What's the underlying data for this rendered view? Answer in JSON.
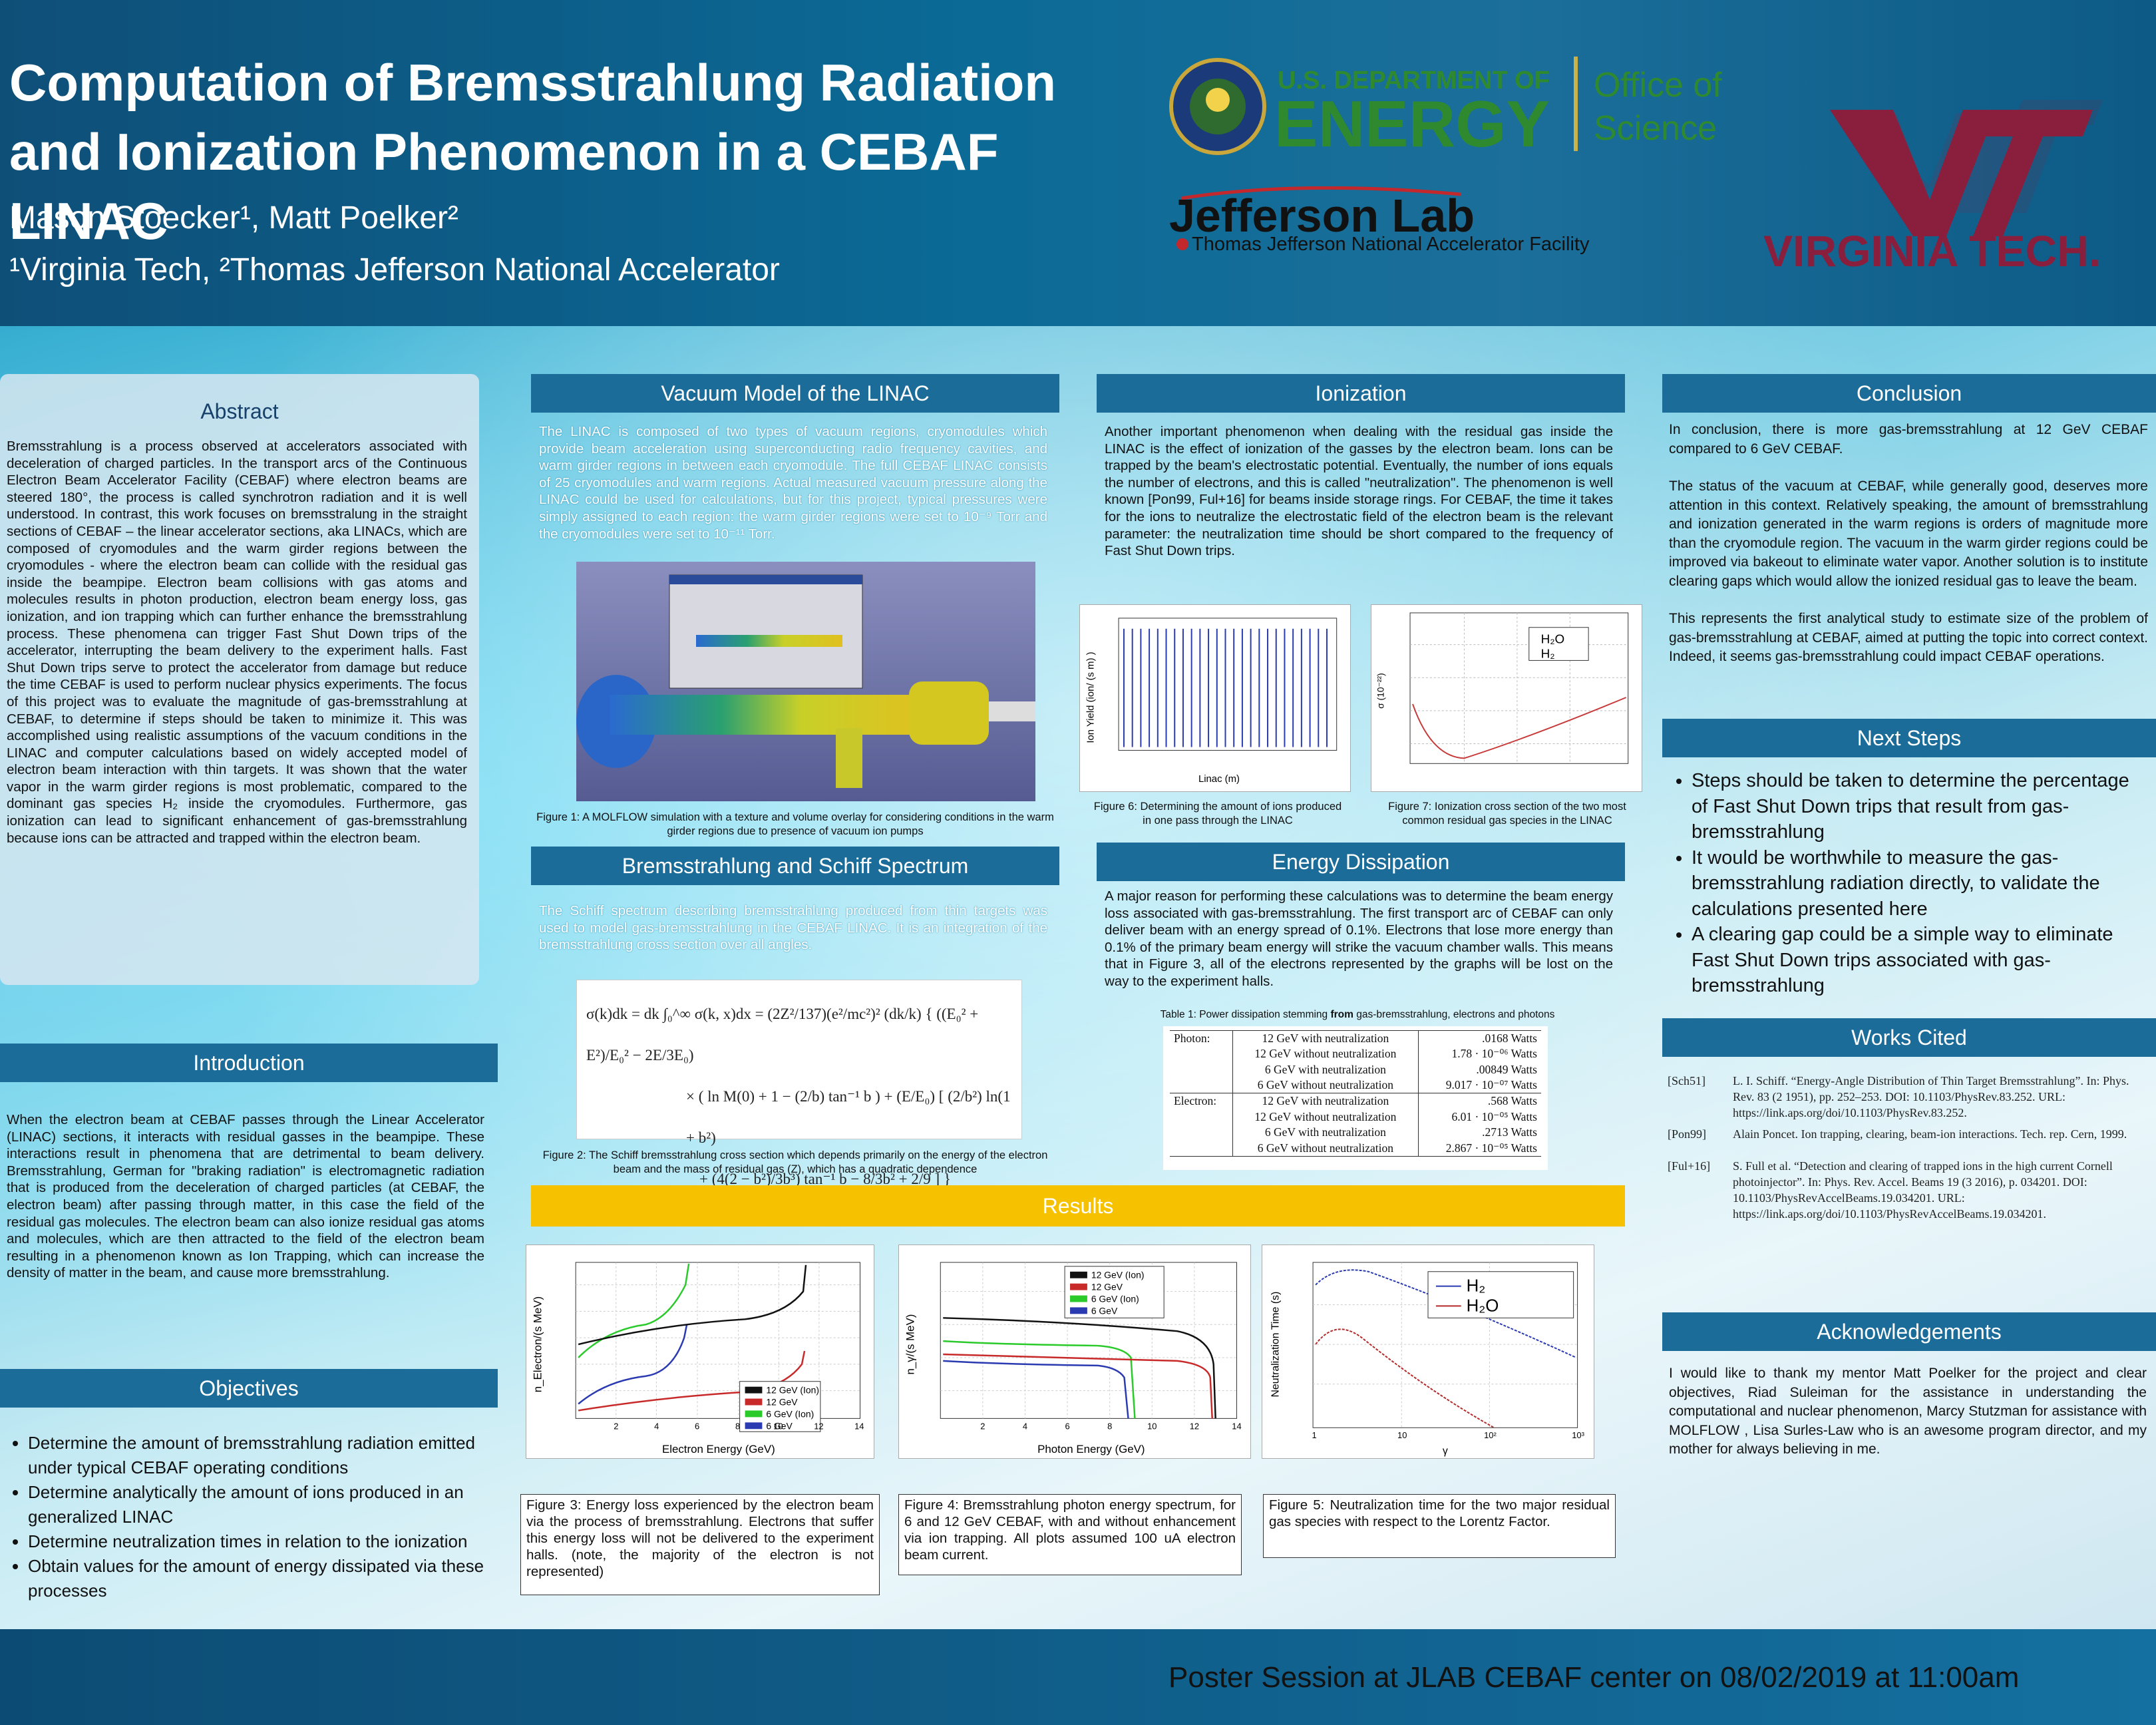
{
  "header": {
    "title": "Computation of Bremsstrahlung Radiation and Ionization Phenomenon in a CEBAF LINAC",
    "authors": "Mason Stoecker¹, Matt Poelker²",
    "affiliations": "¹Virginia Tech, ²Thomas Jefferson National Accelerator",
    "doe_line1": "U.S. DEPARTMENT OF",
    "doe_line2": "ENERGY",
    "doe_office1": "Office of",
    "doe_office2": "Science",
    "jlab": "Jefferson Lab",
    "jlab_sub": "Thomas Jefferson National Accelerator Facility",
    "vt": "VIRGINIA TECH."
  },
  "abstract": {
    "title": "Abstract",
    "body": "Bremsstrahlung is a process observed at accelerators associated with deceleration of charged particles. In the transport arcs of the Continuous Electron Beam Accelerator Facility (CEBAF) where electron beams are steered 180°, the process is called synchrotron radiation and it is well understood. In contrast, this work focuses on bremsstralung in the straight sections of CEBAF – the linear accelerator sections, aka LINACs, which are composed of cryomodules and the warm girder regions between the cryomodules - where the electron beam can collide with the residual gas inside the beampipe. Electron beam collisions with gas atoms and molecules results in photon production, electron beam energy loss, gas ionization, and ion trapping which can further enhance the bremsstrahlung process. These phenomena can trigger Fast Shut Down trips of the accelerator, interrupting the beam delivery to the experiment halls. Fast Shut Down trips serve to protect the accelerator from damage but reduce the time CEBAF is used to perform nuclear physics experiments. The focus of this project was to evaluate the magnitude of gas-bremsstrahlung at CEBAF, to determine if steps should be taken to minimize it. This was accomplished using realistic assumptions of the vacuum conditions in the LINAC and computer calculations based on widely accepted model of electron beam interaction with thin targets. It was shown that the water vapor in the warm girder regions is most problematic, compared to the dominant gas species H₂ inside the cryomodules. Furthermore, gas ionization can lead to significant enhancement of gas-bremsstrahlung because ions can be attracted and trapped within the electron beam."
  },
  "introduction": {
    "title": "Introduction",
    "body": "When the electron beam at CEBAF passes through the Linear Accelerator (LINAC) sections, it interacts with residual gasses in the beampipe. These interactions result in phenomena that are detrimental to beam delivery. Bremsstrahlung, German for \"braking radiation\" is electromagnetic radiation that is produced from the deceleration of charged particles (at CEBAF, the electron beam) after passing through matter, in this case the field of the residual gas molecules. The electron beam can also ionize residual gas atoms and molecules, which are then attracted to the field of the electron beam resulting in a phenomenon known as Ion Trapping, which can increase the density of matter in the beam, and cause more bremsstrahlung."
  },
  "objectives": {
    "title": "Objectives",
    "items": [
      "Determine the amount of bremsstrahlung radiation emitted under typical CEBAF operating conditions",
      "Determine analytically the amount of ions produced in an generalized LINAC",
      "Determine neutralization times in relation to the ionization",
      "Obtain values for the amount of energy dissipated via these processes"
    ]
  },
  "vacuum": {
    "title": "Vacuum Model of the LINAC",
    "body": "The LINAC is composed of two types of vacuum regions, cryomodules which provide beam acceleration using superconducting radio frequency cavities, and warm girder regions in between each cryomodule. The full CEBAF LINAC consists of 25 cryomodules and warm regions. Actual measured vacuum pressure along the LINAC could be used for calculations, but for this project, typical pressures were simply assigned to each region: the warm girder regions were set to 10⁻⁹ Torr and the cryomodules were set to 10⁻¹¹ Torr.",
    "fig1_caption": "Figure 1: A MOLFLOW simulation with a texture and volume overlay for considering conditions in the warm girder regions due to presence of vacuum ion pumps"
  },
  "schiff": {
    "title": "Bremsstrahlung and Schiff Spectrum",
    "body": "The Schiff spectrum describing bremsstrahlung produced from thin targets was used to model gas-bremsstrahlung in the CEBAF LINAC. It is an integration of the bremsstrahlung cross section over all angles.",
    "eq1": "σ(k)dk = dk ∫₀^∞ σ(k, x)dx = (2Z²/137)(e²/mc²)² (dk/k) { ((E₀² + E²)/E₀² − 2E/3E₀)",
    "eq2": "× ( ln M(0) + 1 − (2/b) tan⁻¹ b ) + (E/E₀) [ (2/b²) ln(1 + b²)",
    "eq3": "+ (4(2 − b²)/3b³) tan⁻¹ b − 8/3b² + 2/9 ] }",
    "fig2_caption": "Figure 2: The Schiff bremsstrahlung cross section which depends primarily on the energy of the electron beam and the mass of residual gas (Z), which has a quadratic dependence"
  },
  "ionization": {
    "title": "Ionization",
    "body": "Another important phenomenon when dealing with the residual gas inside the LINAC is the effect of ionization of the gasses by the electron beam. Ions can be trapped by the beam's electrostatic potential. Eventually, the number of ions equals the number of electrons, and this is called \"neutralization\". The phenomenon is well known [Pon99, Ful+16] for beams inside storage rings. For CEBAF, the time it takes for the ions to neutralize the electrostatic field of the electron beam is the relevant parameter: the neutralization time should be short compared to the frequency of Fast Shut Down trips.",
    "fig6_caption": "Figure 6: Determining the amount of ions produced in one pass through the LINAC",
    "fig7_caption": "Figure 7: Ionization cross section of the two most common residual gas species in the LINAC",
    "fig6_xlabel": "Linac (m)",
    "fig6_ylabel": "Ion Yield (ion/ (s m) )",
    "fig7_ylabel": "σ (10⁻²²)",
    "fig7_legend1": "H₂O",
    "fig7_legend2": "H₂"
  },
  "energy": {
    "title": "Energy Dissipation",
    "body": "A major reason for performing these calculations was to determine the beam energy loss associated with gas-bremsstrahlung. The first transport arc of CEBAF can only deliver beam with an energy spread of 0.1%. Electrons that lose more energy than 0.1% of the primary beam energy will strike the vacuum chamber walls. This means that in Figure 3, all of the electrons represented by the graphs will be lost on the way to the experiment halls.",
    "table_caption_a": "Table 1: Power dissipation stemming ",
    "table_caption_b": "from",
    "table_caption_c": " gas-bremsstrahlung, electrons and photons",
    "table": [
      [
        "Photon:",
        "12 GeV with neutralization",
        ".0168 Watts"
      ],
      [
        "",
        "12 GeV without neutralization",
        "1.78 · 10⁻⁰⁶ Watts"
      ],
      [
        "",
        "6 GeV with neutralization",
        ".00849 Watts"
      ],
      [
        "",
        "6 GeV without neutralization",
        "9.017 · 10⁻⁰⁷ Watts"
      ],
      [
        "Electron:",
        "12 GeV with neutralization",
        ".568 Watts"
      ],
      [
        "",
        "12 GeV without neutralization",
        "6.01 · 10⁻⁰⁵ Watts"
      ],
      [
        "",
        "6 GeV with neutralization",
        ".2713 Watts"
      ],
      [
        "",
        "6 GeV without neutralization",
        "2.867 · 10⁻⁰⁵ Watts"
      ]
    ]
  },
  "results": {
    "title": "Results",
    "fig3_caption": "Figure 3: Energy loss experienced by the electron beam via the process of bremsstrahlung. Electrons that suffer this energy loss will not be delivered to the experiment halls. (note, the majority of the electron is not represented)",
    "fig4_caption": "Figure 4: Bremsstrahlung photon energy spectrum, for 6 and 12 GeV CEBAF, with and without enhancement via ion trapping. All plots assumed 100 uA electron beam current.",
    "fig5_caption": "Figure 5: Neutralization time for the two major residual gas species with respect to the Lorentz Factor.",
    "fig3_xlabel": "Electron Energy (GeV)",
    "fig3_ylabel": "n_Electron/(s MeV)",
    "fig3_legend": [
      "12 GeV (Ion)",
      "12 GeV",
      "6 GeV (Ion)",
      "6 GeV"
    ],
    "fig4_xlabel": "Photon Energy (GeV)",
    "fig4_ylabel": "n_γ/(s MeV)",
    "fig4_legend": [
      "12 GeV (Ion)",
      "12 GeV",
      "6 GeV (Ion)",
      "6 GeV"
    ],
    "fig5_xlabel": "γ",
    "fig5_ylabel": "Neutralization Time (s)",
    "fig5_legend": [
      "H₂",
      "H₂O"
    ],
    "x_ticks": [
      "2",
      "4",
      "6",
      "8",
      "10",
      "12",
      "14"
    ],
    "x_ticks_log": [
      "1",
      "10",
      "10²",
      "10³"
    ]
  },
  "conclusion": {
    "title": "Conclusion",
    "p1": "In conclusion, there is more gas-bremsstrahlung at 12 GeV CEBAF compared to 6 GeV CEBAF.",
    "p2": "The status of the vacuum at CEBAF, while generally good, deserves more attention in this context. Relatively speaking, the amount of bremsstrahlung and ionization generated in the warm regions is orders of magnitude more than the cryomodule region. The vacuum in the warm girder regions could be improved via bakeout to eliminate water vapor. Another solution is to institute clearing gaps which would allow the ionized residual gas to leave the beam.",
    "p3": "This represents the first analytical study to estimate size of the problem of gas-bremsstrahlung at CEBAF, aimed at putting the topic into correct context. Indeed, it seems gas-bremsstrahlung could impact CEBAF operations."
  },
  "next_steps": {
    "title": "Next Steps",
    "items": [
      "Steps should be taken to determine the percentage of Fast Shut Down trips that result from gas-bremsstrahlung",
      "It would be worthwhile to measure the gas-bremsstrahlung radiation directly, to validate the calculations presented here",
      "A clearing gap could be a simple way to eliminate Fast Shut Down trips associated with gas-bremsstrahlung"
    ]
  },
  "works_cited": {
    "title": "Works Cited",
    "refs": [
      {
        "key": "[Sch51]",
        "text": "L. I. Schiff. “Energy-Angle Distribution of Thin Target Bremsstrahlung”. In: Phys. Rev. 83 (2 1951), pp. 252–253. DOI: 10.1103/PhysRev.83.252. URL: https://link.aps.org/doi/10.1103/PhysRev.83.252."
      },
      {
        "key": "[Pon99]",
        "text": "Alain Poncet. Ion trapping, clearing, beam-ion interactions. Tech. rep. Cern, 1999."
      },
      {
        "key": "[Ful+16]",
        "text": "S. Full et al. “Detection and clearing of trapped ions in the high current Cornell photoinjector”. In: Phys. Rev. Accel. Beams 19 (3 2016), p. 034201. DOI: 10.1103/PhysRevAccelBeams.19.034201. URL: https://link.aps.org/doi/10.1103/PhysRevAccelBeams.19.034201."
      }
    ]
  },
  "acknowledgements": {
    "title": "Acknowledgements",
    "body": "I would like to thank my mentor Matt Poelker for the project and clear objectives, Riad Suleiman for the assistance in understanding the computational and nuclear phenomenon, Marcy Stutzman for assistance with MOLFLOW , Lisa Surles-Law who is an awesome program director, and my mother for always believing in me."
  },
  "footer": {
    "text": "Poster Session at JLAB CEBAF center on 08/02/2019 at 11:00am"
  },
  "colors": {
    "header": "#0e4f78",
    "section": "#1b6c98",
    "results": "#f6c200"
  }
}
